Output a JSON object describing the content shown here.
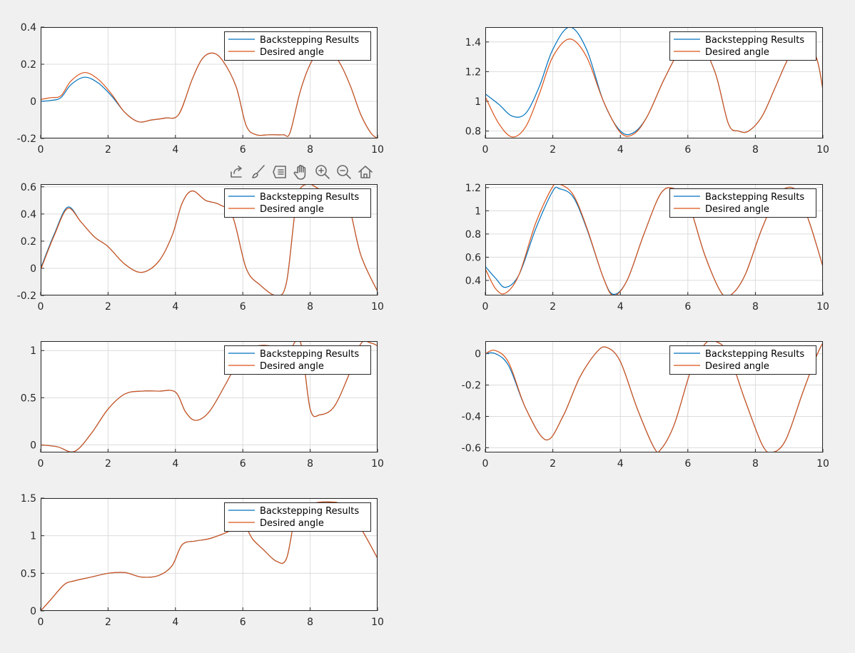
{
  "toolbar": {
    "buttons": [
      {
        "icon": "export-icon",
        "name": "export-button"
      },
      {
        "icon": "brush-icon",
        "name": "brush-button"
      },
      {
        "icon": "datatip-icon",
        "name": "datatip-button"
      },
      {
        "icon": "pan-hand-icon",
        "name": "pan-button"
      },
      {
        "icon": "zoom-in-icon",
        "name": "zoom-in-button"
      },
      {
        "icon": "zoom-out-icon",
        "name": "zoom-out-button"
      },
      {
        "icon": "home-icon",
        "name": "restore-view-button"
      }
    ]
  },
  "colors": {
    "series1": "#0072BD",
    "series2": "#D95319",
    "grid": "#dcdcdc",
    "axes_bg": "#ffffff",
    "figure_bg": "#f0f0f0"
  },
  "chart_data": [
    {
      "type": "line",
      "xlim": [
        0,
        10
      ],
      "ylim": [
        -0.2,
        0.4
      ],
      "xticks": [
        "0",
        "2",
        "4",
        "6",
        "8",
        "10"
      ],
      "yticks": [
        "-0.2",
        "0",
        "0.2",
        "0.4"
      ],
      "grid": true,
      "legend": "top-right",
      "series": [
        {
          "name": "Backstepping Results",
          "x": [
            0,
            0.3,
            0.6,
            0.9,
            1.3,
            1.7,
            2.1,
            2.5,
            2.9,
            3.3,
            3.7,
            4.1,
            4.5,
            4.8,
            5.1,
            5.4,
            5.8,
            6.1,
            6.4,
            6.8,
            7.2,
            7.4,
            7.7,
            8.0,
            8.3,
            8.6,
            8.9,
            9.2,
            9.5,
            9.8,
            10
          ],
          "y": [
            0,
            0.005,
            0.02,
            0.09,
            0.13,
            0.1,
            0.03,
            -0.06,
            -0.11,
            -0.1,
            -0.09,
            -0.07,
            0.12,
            0.23,
            0.26,
            0.22,
            0.08,
            -0.13,
            -0.18,
            -0.18,
            -0.18,
            -0.17,
            0.05,
            0.2,
            0.27,
            0.27,
            0.2,
            0.08,
            -0.07,
            -0.17,
            -0.2
          ]
        },
        {
          "name": "Desired angle",
          "x": [
            0,
            0.3,
            0.6,
            0.9,
            1.3,
            1.7,
            2.1,
            2.5,
            2.9,
            3.3,
            3.7,
            4.1,
            4.5,
            4.8,
            5.1,
            5.4,
            5.8,
            6.1,
            6.4,
            6.8,
            7.2,
            7.4,
            7.7,
            8.0,
            8.3,
            8.6,
            8.9,
            9.2,
            9.5,
            9.8,
            10
          ],
          "y": [
            0.01,
            0.02,
            0.03,
            0.11,
            0.155,
            0.12,
            0.04,
            -0.06,
            -0.11,
            -0.1,
            -0.09,
            -0.07,
            0.12,
            0.23,
            0.26,
            0.22,
            0.08,
            -0.13,
            -0.18,
            -0.18,
            -0.18,
            -0.17,
            0.05,
            0.2,
            0.27,
            0.27,
            0.2,
            0.08,
            -0.07,
            -0.17,
            -0.2
          ]
        }
      ]
    },
    {
      "type": "line",
      "xlim": [
        0,
        10
      ],
      "ylim": [
        0.75,
        1.5
      ],
      "xticks": [
        "0",
        "2",
        "4",
        "6",
        "8",
        "10"
      ],
      "yticks": [
        "0.8",
        "1",
        "1.2",
        "1.4"
      ],
      "grid": true,
      "legend": "top-right",
      "series": [
        {
          "name": "Backstepping Results",
          "x": [
            0,
            0.4,
            0.8,
            1.2,
            1.6,
            2.0,
            2.5,
            3.0,
            3.5,
            4.0,
            4.4,
            4.8,
            5.3,
            5.8,
            6.3,
            6.8,
            7.2,
            7.5,
            7.8,
            8.2,
            8.6,
            9.0,
            9.4,
            9.8,
            10
          ],
          "y": [
            1.05,
            0.98,
            0.9,
            0.92,
            1.1,
            1.35,
            1.5,
            1.35,
            1.0,
            0.8,
            0.79,
            0.9,
            1.15,
            1.35,
            1.4,
            1.2,
            0.85,
            0.8,
            0.8,
            0.9,
            1.1,
            1.3,
            1.42,
            1.3,
            1.08
          ]
        },
        {
          "name": "Desired angle",
          "x": [
            0,
            0.4,
            0.8,
            1.2,
            1.6,
            2.0,
            2.5,
            3.0,
            3.5,
            4.0,
            4.4,
            4.8,
            5.3,
            5.8,
            6.3,
            6.8,
            7.2,
            7.5,
            7.8,
            8.2,
            8.6,
            9.0,
            9.4,
            9.8,
            10
          ],
          "y": [
            1.03,
            0.85,
            0.76,
            0.83,
            1.05,
            1.3,
            1.42,
            1.3,
            1.0,
            0.79,
            0.78,
            0.9,
            1.15,
            1.35,
            1.4,
            1.2,
            0.85,
            0.8,
            0.8,
            0.9,
            1.1,
            1.3,
            1.42,
            1.3,
            1.08
          ]
        }
      ]
    },
    {
      "type": "line",
      "xlim": [
        0,
        10
      ],
      "ylim": [
        -0.2,
        0.62
      ],
      "xticks": [
        "0",
        "2",
        "4",
        "6",
        "8",
        "10"
      ],
      "yticks": [
        "-0.2",
        "0",
        "0.2",
        "0.4",
        "0.6"
      ],
      "grid": true,
      "legend": "top-right",
      "series": [
        {
          "name": "Backstepping Results",
          "x": [
            0,
            0.4,
            0.8,
            1.2,
            1.6,
            2.0,
            2.5,
            3.0,
            3.5,
            3.9,
            4.2,
            4.5,
            4.9,
            5.3,
            5.7,
            6.1,
            6.5,
            7.0,
            7.3,
            7.6,
            7.9,
            8.3,
            8.7,
            9.1,
            9.5,
            10
          ],
          "y": [
            0,
            0.25,
            0.45,
            0.34,
            0.23,
            0.16,
            0.03,
            -0.03,
            0.05,
            0.24,
            0.48,
            0.57,
            0.5,
            0.47,
            0.38,
            0.0,
            -0.12,
            -0.2,
            -0.1,
            0.5,
            0.62,
            0.58,
            0.55,
            0.5,
            0.1,
            -0.17
          ]
        },
        {
          "name": "Desired angle",
          "x": [
            0,
            0.4,
            0.8,
            1.2,
            1.6,
            2.0,
            2.5,
            3.0,
            3.5,
            3.9,
            4.2,
            4.5,
            4.9,
            5.3,
            5.7,
            6.1,
            6.5,
            7.0,
            7.3,
            7.6,
            7.9,
            8.3,
            8.7,
            9.1,
            9.5,
            10
          ],
          "y": [
            -0.01,
            0.24,
            0.44,
            0.34,
            0.23,
            0.16,
            0.03,
            -0.03,
            0.05,
            0.24,
            0.48,
            0.57,
            0.5,
            0.47,
            0.38,
            0.0,
            -0.12,
            -0.2,
            -0.1,
            0.5,
            0.62,
            0.58,
            0.55,
            0.5,
            0.1,
            -0.17
          ]
        }
      ]
    },
    {
      "type": "line",
      "xlim": [
        0,
        10
      ],
      "ylim": [
        0.27,
        1.23
      ],
      "xticks": [
        "0",
        "2",
        "4",
        "6",
        "8",
        "10"
      ],
      "yticks": [
        "0.4",
        "0.6",
        "0.8",
        "1",
        "1.2"
      ],
      "grid": true,
      "legend": "top-right",
      "series": [
        {
          "name": "Backstepping Results",
          "x": [
            0,
            0.3,
            0.6,
            1.0,
            1.5,
            2.0,
            2.2,
            2.6,
            3.0,
            3.5,
            3.8,
            4.2,
            4.7,
            5.2,
            5.6,
            6.0,
            6.5,
            7.0,
            7.3,
            7.7,
            8.2,
            8.7,
            9.2,
            9.6,
            10
          ],
          "y": [
            0.52,
            0.42,
            0.34,
            0.45,
            0.85,
            1.17,
            1.19,
            1.12,
            0.85,
            0.42,
            0.28,
            0.4,
            0.8,
            1.15,
            1.19,
            1.08,
            0.62,
            0.29,
            0.28,
            0.45,
            0.85,
            1.15,
            1.18,
            0.9,
            0.52
          ]
        },
        {
          "name": "Desired angle",
          "x": [
            0,
            0.3,
            0.6,
            1.0,
            1.5,
            2.0,
            2.2,
            2.6,
            3.0,
            3.5,
            3.8,
            4.2,
            4.7,
            5.2,
            5.6,
            6.0,
            6.5,
            7.0,
            7.3,
            7.7,
            8.2,
            8.7,
            9.2,
            9.6,
            10
          ],
          "y": [
            0.5,
            0.33,
            0.29,
            0.45,
            0.9,
            1.21,
            1.23,
            1.14,
            0.86,
            0.42,
            0.27,
            0.4,
            0.8,
            1.15,
            1.19,
            1.08,
            0.62,
            0.29,
            0.28,
            0.45,
            0.85,
            1.15,
            1.18,
            0.9,
            0.52
          ]
        }
      ]
    },
    {
      "type": "line",
      "xlim": [
        0,
        10
      ],
      "ylim": [
        -0.08,
        1.1
      ],
      "xticks": [
        "0",
        "2",
        "4",
        "6",
        "8",
        "10"
      ],
      "yticks": [
        "0",
        "0.5",
        "1"
      ],
      "grid": true,
      "legend": "top-right",
      "series": [
        {
          "name": "Backstepping Results",
          "x": [
            0,
            0.5,
            1.0,
            1.5,
            2.0,
            2.5,
            3.0,
            3.5,
            4.0,
            4.3,
            4.6,
            5.0,
            5.5,
            6.0,
            6.3,
            6.8,
            7.3,
            7.7,
            8.0,
            8.3,
            8.7,
            9.1,
            9.5,
            9.8,
            10
          ],
          "y": [
            0,
            -0.02,
            -0.07,
            0.12,
            0.38,
            0.54,
            0.57,
            0.57,
            0.56,
            0.35,
            0.26,
            0.35,
            0.65,
            0.98,
            1.04,
            1.05,
            0.96,
            1.1,
            0.38,
            0.32,
            0.4,
            0.7,
            1.07,
            1.08,
            1.05
          ]
        },
        {
          "name": "Desired angle",
          "x": [
            0,
            0.5,
            1.0,
            1.5,
            2.0,
            2.5,
            3.0,
            3.5,
            4.0,
            4.3,
            4.6,
            5.0,
            5.5,
            6.0,
            6.3,
            6.8,
            7.3,
            7.7,
            8.0,
            8.3,
            8.7,
            9.1,
            9.5,
            9.8,
            10
          ],
          "y": [
            0,
            -0.02,
            -0.07,
            0.12,
            0.38,
            0.54,
            0.57,
            0.57,
            0.56,
            0.35,
            0.26,
            0.35,
            0.65,
            0.98,
            1.04,
            1.05,
            0.96,
            1.1,
            0.38,
            0.32,
            0.4,
            0.7,
            1.07,
            1.08,
            1.05
          ]
        }
      ]
    },
    {
      "type": "line",
      "xlim": [
        0,
        10
      ],
      "ylim": [
        -0.63,
        0.08
      ],
      "xticks": [
        "0",
        "2",
        "4",
        "6",
        "8",
        "10"
      ],
      "yticks": [
        "-0.6",
        "-0.4",
        "-0.2",
        "0"
      ],
      "grid": true,
      "legend": "top-right",
      "series": [
        {
          "name": "Backstepping Results",
          "x": [
            0,
            0.3,
            0.7,
            1.2,
            1.8,
            2.3,
            2.8,
            3.3,
            3.6,
            4.0,
            4.5,
            5.0,
            5.2,
            5.6,
            6.1,
            6.5,
            6.8,
            7.2,
            7.7,
            8.2,
            8.5,
            8.9,
            9.4,
            9.8,
            10
          ],
          "y": [
            0,
            0.0,
            -0.08,
            -0.35,
            -0.55,
            -0.4,
            -0.15,
            0.01,
            0.04,
            -0.05,
            -0.35,
            -0.6,
            -0.61,
            -0.45,
            -0.1,
            0.06,
            0.08,
            0.0,
            -0.3,
            -0.58,
            -0.63,
            -0.55,
            -0.25,
            -0.02,
            0.07
          ]
        },
        {
          "name": "Desired angle",
          "x": [
            0,
            0.3,
            0.7,
            1.2,
            1.8,
            2.3,
            2.8,
            3.3,
            3.6,
            4.0,
            4.5,
            5.0,
            5.2,
            5.6,
            6.1,
            6.5,
            6.8,
            7.2,
            7.7,
            8.2,
            8.5,
            8.9,
            9.4,
            9.8,
            10
          ],
          "y": [
            0,
            0.02,
            -0.06,
            -0.35,
            -0.55,
            -0.4,
            -0.15,
            0.01,
            0.04,
            -0.05,
            -0.35,
            -0.6,
            -0.61,
            -0.45,
            -0.1,
            0.06,
            0.08,
            0.0,
            -0.3,
            -0.58,
            -0.63,
            -0.55,
            -0.25,
            -0.02,
            0.07
          ]
        }
      ]
    },
    {
      "type": "line",
      "xlim": [
        0,
        10
      ],
      "ylim": [
        0,
        1.5
      ],
      "xticks": [
        "0",
        "2",
        "4",
        "6",
        "8",
        "10"
      ],
      "yticks": [
        "0",
        "0.5",
        "1",
        "1.5"
      ],
      "grid": true,
      "legend": "top-right",
      "series": [
        {
          "name": "Backstepping Results",
          "x": [
            0,
            0.3,
            0.7,
            1.0,
            1.5,
            2.0,
            2.5,
            3.0,
            3.5,
            3.9,
            4.2,
            4.6,
            5.0,
            5.5,
            6.0,
            6.3,
            6.6,
            7.0,
            7.3,
            7.6,
            8.0,
            8.5,
            9.0,
            9.5,
            10
          ],
          "y": [
            0,
            0.15,
            0.35,
            0.4,
            0.45,
            0.5,
            0.51,
            0.45,
            0.47,
            0.6,
            0.88,
            0.93,
            0.96,
            1.04,
            1.14,
            0.95,
            0.82,
            0.66,
            0.7,
            1.32,
            1.42,
            1.45,
            1.4,
            1.1,
            0.7
          ]
        },
        {
          "name": "Desired angle",
          "x": [
            0,
            0.3,
            0.7,
            1.0,
            1.5,
            2.0,
            2.5,
            3.0,
            3.5,
            3.9,
            4.2,
            4.6,
            5.0,
            5.5,
            6.0,
            6.3,
            6.6,
            7.0,
            7.3,
            7.6,
            8.0,
            8.5,
            9.0,
            9.5,
            10
          ],
          "y": [
            0,
            0.15,
            0.35,
            0.4,
            0.45,
            0.5,
            0.51,
            0.45,
            0.47,
            0.6,
            0.88,
            0.93,
            0.96,
            1.04,
            1.14,
            0.95,
            0.82,
            0.66,
            0.7,
            1.32,
            1.42,
            1.45,
            1.4,
            1.1,
            0.7
          ]
        }
      ]
    }
  ]
}
